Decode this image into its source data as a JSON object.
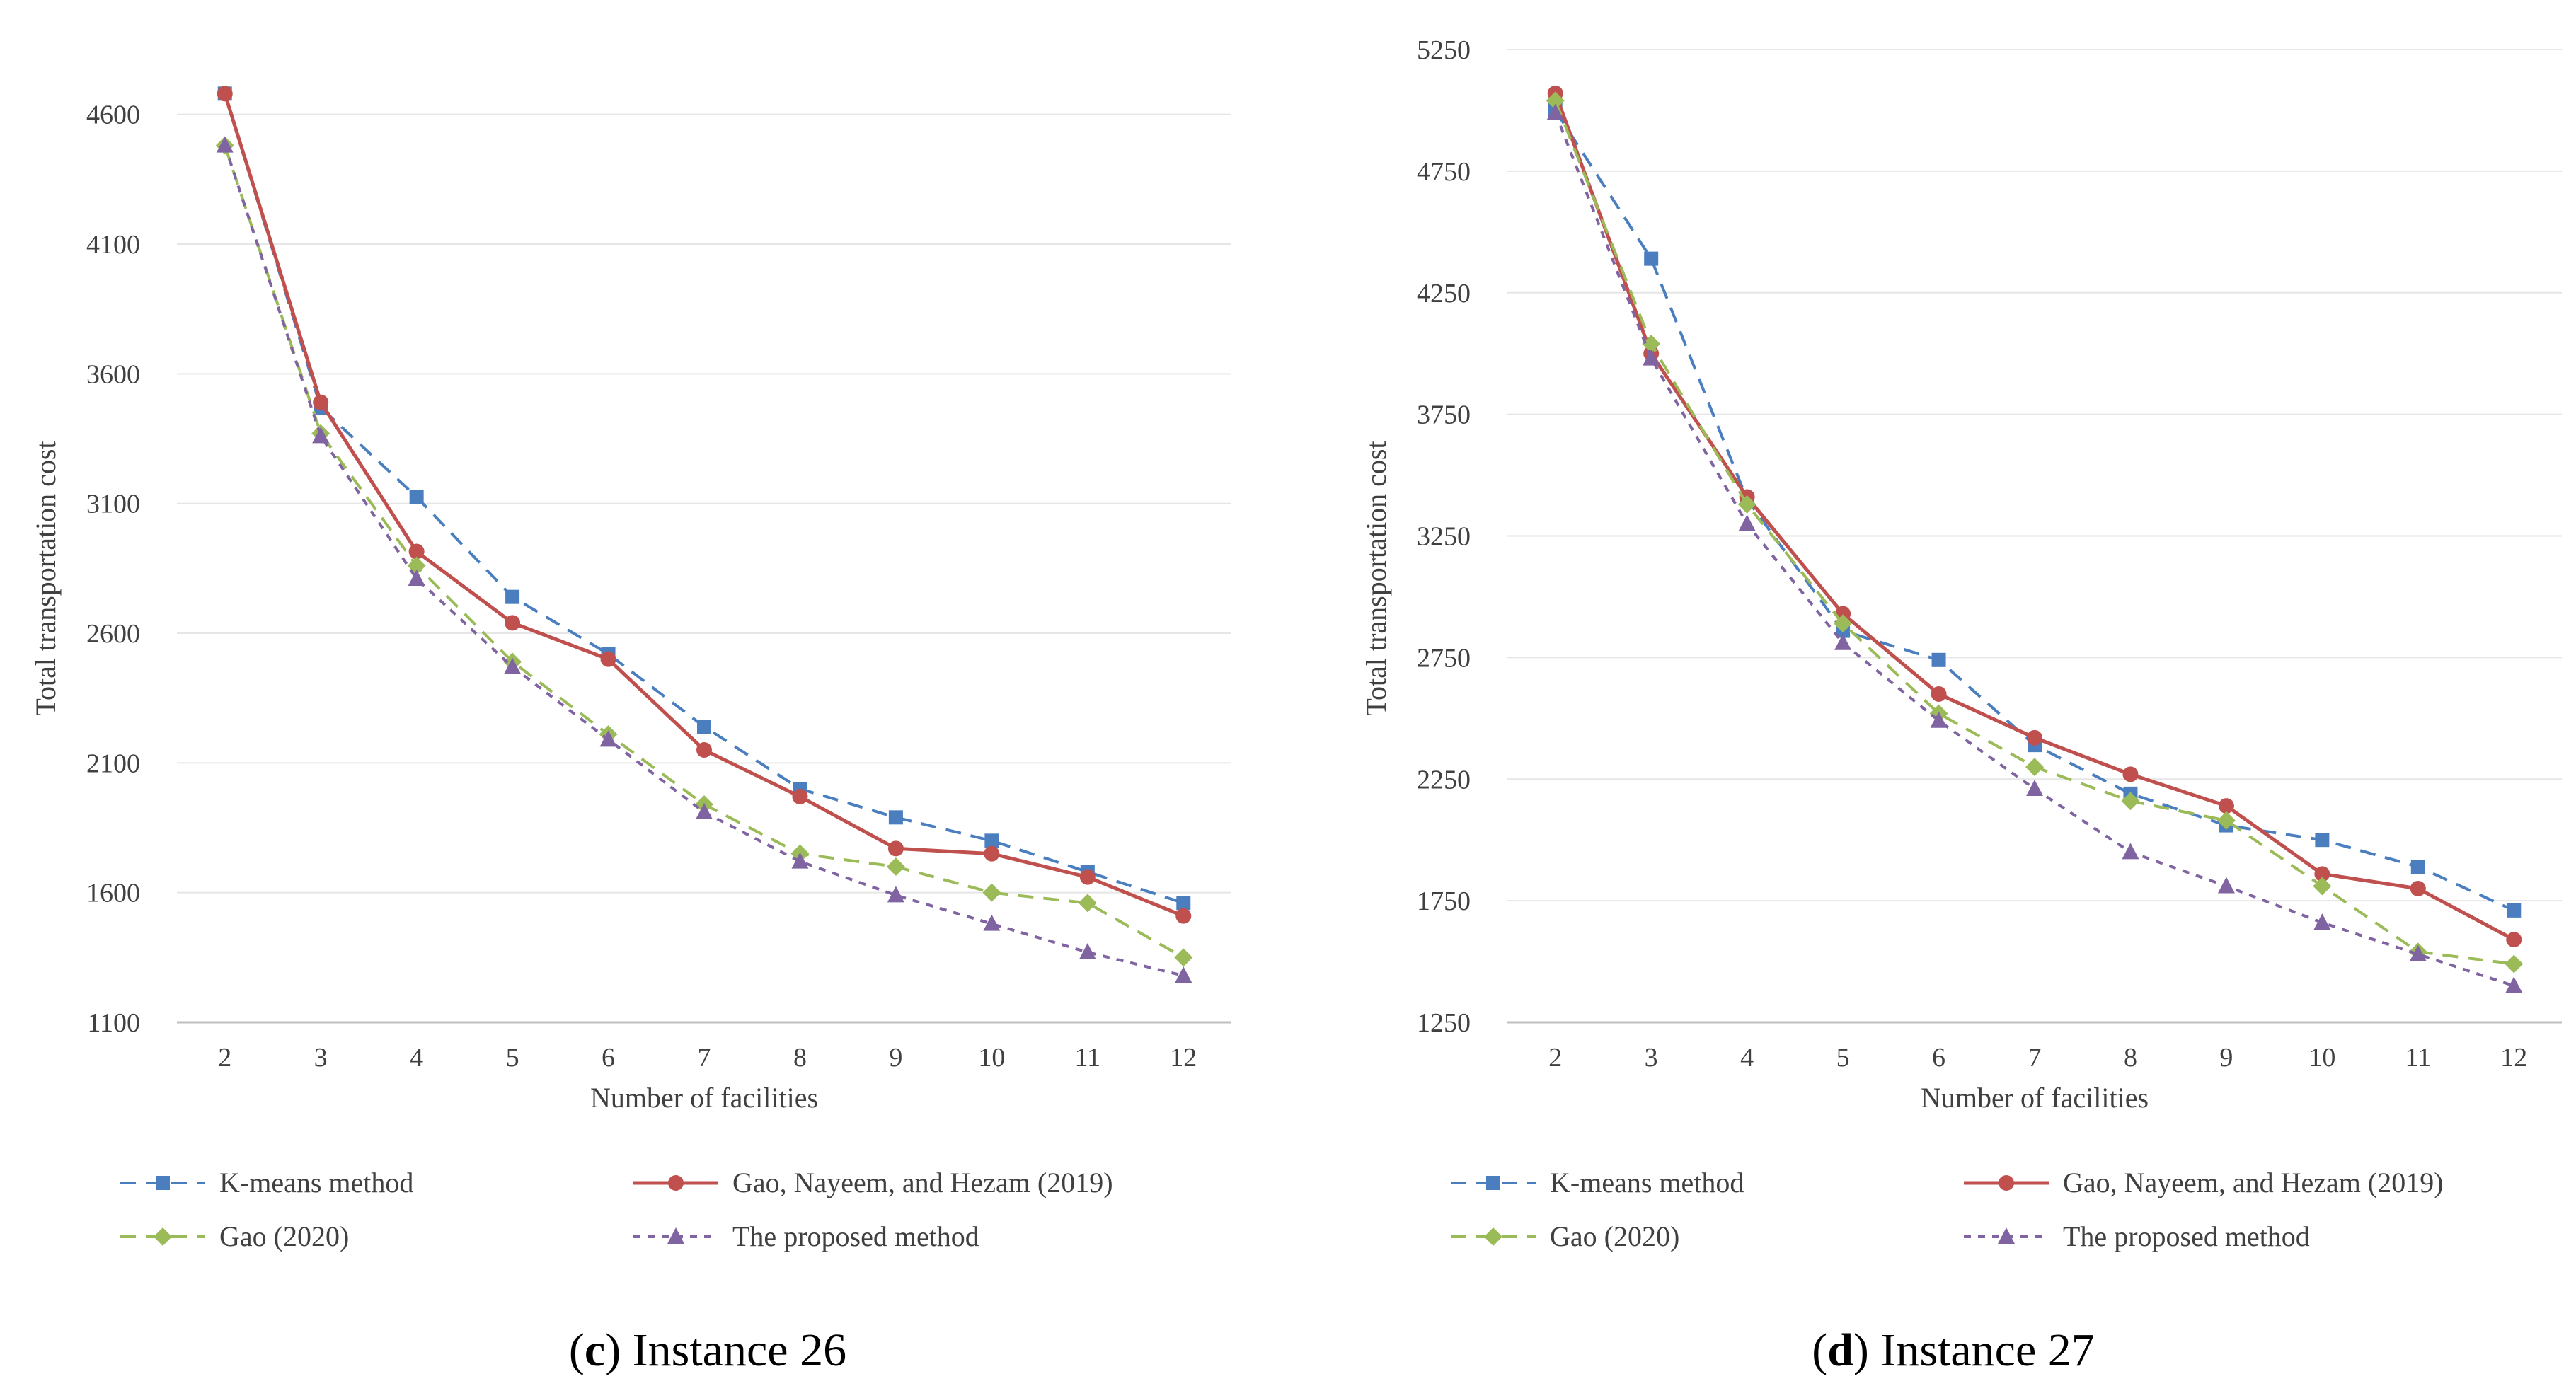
{
  "chart_data": [
    {
      "type": "line",
      "caption_letter": "c",
      "caption_text": "Instance 26",
      "xlabel": "Number of facilities",
      "ylabel": "Total transportation cost",
      "categories": [
        "2",
        "3",
        "4",
        "5",
        "6",
        "7",
        "8",
        "9",
        "10",
        "11",
        "12"
      ],
      "ylim": [
        1100,
        4850
      ],
      "yticks": [
        "1100",
        "1600",
        "2100",
        "2600",
        "3100",
        "3600",
        "4100",
        "4600"
      ],
      "series": [
        {
          "name": "K-means method",
          "color": "#4a7ebf",
          "dash": "dash",
          "marker": "square",
          "values": [
            4680,
            3470,
            3125,
            2740,
            2520,
            2240,
            2000,
            1890,
            1800,
            1680,
            1560
          ]
        },
        {
          "name": "Gao, Nayeem, and Hezam (2019)",
          "color": "#c0504d",
          "dash": "solid",
          "marker": "circle",
          "values": [
            4680,
            3490,
            2915,
            2640,
            2500,
            2150,
            1970,
            1770,
            1750,
            1660,
            1510
          ]
        },
        {
          "name": "Gao (2020)",
          "color": "#9bbb59",
          "dash": "dash",
          "marker": "diamond",
          "values": [
            4480,
            3370,
            2860,
            2490,
            2210,
            1940,
            1750,
            1700,
            1600,
            1560,
            1350
          ]
        },
        {
          "name": "The proposed method",
          "color": "#8064a2",
          "dash": "dot",
          "marker": "triangle",
          "values": [
            4480,
            3360,
            2810,
            2470,
            2190,
            1910,
            1720,
            1590,
            1480,
            1370,
            1280
          ]
        }
      ]
    },
    {
      "type": "line",
      "caption_letter": "d",
      "caption_text": "Instance 27",
      "xlabel": "Number of facilities",
      "ylabel": "Total transportation cost",
      "categories": [
        "2",
        "3",
        "4",
        "5",
        "6",
        "7",
        "8",
        "9",
        "10",
        "11",
        "12"
      ],
      "ylim": [
        1250,
        5250
      ],
      "yticks": [
        "1250",
        "1750",
        "2250",
        "2750",
        "3250",
        "3750",
        "4250",
        "4750",
        "5250"
      ],
      "series": [
        {
          "name": "K-means method",
          "color": "#4a7ebf",
          "dash": "dash",
          "marker": "square",
          "values": [
            5000,
            4390,
            3400,
            2860,
            2740,
            2390,
            2190,
            2060,
            2000,
            1890,
            1710
          ]
        },
        {
          "name": "Gao, Nayeem, and Hezam (2019)",
          "color": "#c0504d",
          "dash": "solid",
          "marker": "circle",
          "values": [
            5070,
            4000,
            3410,
            2930,
            2600,
            2420,
            2270,
            2140,
            1860,
            1800,
            1590
          ]
        },
        {
          "name": "Gao (2020)",
          "color": "#9bbb59",
          "dash": "dash",
          "marker": "diamond",
          "values": [
            5040,
            4040,
            3380,
            2890,
            2520,
            2300,
            2160,
            2080,
            1810,
            1540,
            1490
          ]
        },
        {
          "name": "The proposed method",
          "color": "#8064a2",
          "dash": "dot",
          "marker": "triangle",
          "values": [
            4990,
            3980,
            3300,
            2810,
            2490,
            2210,
            1950,
            1810,
            1660,
            1530,
            1400
          ]
        }
      ]
    }
  ]
}
